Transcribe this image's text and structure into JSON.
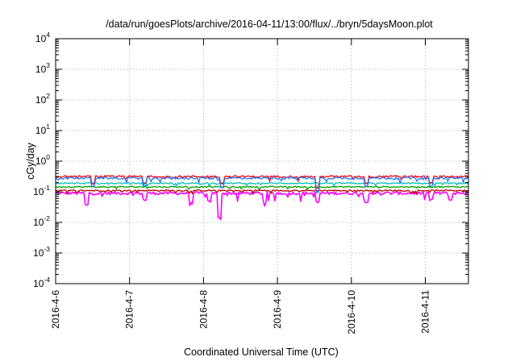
{
  "chart_data": {
    "type": "line",
    "title": "/data/run/goesPlots/archive/2016-04-11/13:00/flux/../bryn/5daysMoon.plot",
    "xlabel": "Coordinated Universal Time (UTC)",
    "ylabel": "cGy/day",
    "yscale": "log",
    "ylim": [
      0.0001,
      10000
    ],
    "y_ticks": [
      {
        "base": "10",
        "exp": "-4",
        "value": 0.0001
      },
      {
        "base": "10",
        "exp": "-3",
        "value": 0.001
      },
      {
        "base": "10",
        "exp": "-2",
        "value": 0.01
      },
      {
        "base": "10",
        "exp": "-1",
        "value": 0.1
      },
      {
        "base": "10",
        "exp": "0",
        "value": 1
      },
      {
        "base": "10",
        "exp": "1",
        "value": 10
      },
      {
        "base": "10",
        "exp": "2",
        "value": 100
      },
      {
        "base": "10",
        "exp": "3",
        "value": 1000
      },
      {
        "base": "10",
        "exp": "4",
        "value": 10000
      }
    ],
    "xlim": [
      "2016-04-06",
      "2016-04-11 14:00"
    ],
    "x_ticks": [
      "2016-4-6",
      "2016-4-7",
      "2016-4-8",
      "2016-4-9",
      "2016-4-10",
      "2016-4-11"
    ],
    "grid": true,
    "legend": "none",
    "series": [
      {
        "color": "#ff00ff",
        "base_value": 0.09,
        "noise": 0.11,
        "dip_depth": 0.45,
        "dips": [
          [
            "2016-04-06 10:00",
            0.6
          ],
          [
            "2016-04-07 05:00",
            0.4
          ],
          [
            "2016-04-07 20:00",
            0.5
          ],
          [
            "2016-04-08 02:00",
            0.45
          ],
          [
            "2016-04-08 05:00",
            0.85
          ],
          [
            "2016-04-08 20:00",
            0.45
          ],
          [
            "2016-04-09 13:00",
            0.5
          ],
          [
            "2016-04-10 05:00",
            0.45
          ],
          [
            "2016-04-11 02:00",
            0.4
          ],
          [
            "2016-04-11 08:00",
            0.4
          ]
        ]
      },
      {
        "color": "#c00000",
        "base_value": 0.11,
        "noise": 0.05,
        "dip_depth": 0.2,
        "dips": []
      },
      {
        "color": "#00a000",
        "base_value": 0.145,
        "noise": 0.05,
        "dip_depth": 0.2,
        "dips": []
      },
      {
        "color": "#00c0c0",
        "base_value": 0.19,
        "noise": 0.05,
        "dip_depth": 0.2,
        "dips": []
      },
      {
        "color": "#ff0000",
        "base_value": 0.315,
        "noise": 0.07,
        "dip_depth": 0.3,
        "dips": [
          [
            "2016-04-06 12:00",
            0.4
          ],
          [
            "2016-04-07 05:00",
            0.4
          ],
          [
            "2016-04-08 06:00",
            0.4
          ],
          [
            "2016-04-09 13:00",
            0.6
          ],
          [
            "2016-04-10 05:00",
            0.4
          ],
          [
            "2016-04-11 02:00",
            0.4
          ]
        ]
      },
      {
        "color": "#1e78ff",
        "base_value": 0.28,
        "noise": 0.08,
        "dip_depth": 0.35,
        "dips": [
          [
            "2016-04-06 12:00",
            0.45
          ],
          [
            "2016-04-07 05:00",
            0.45
          ],
          [
            "2016-04-08 06:00",
            0.5
          ],
          [
            "2016-04-09 13:00",
            0.65
          ],
          [
            "2016-04-10 05:00",
            0.45
          ],
          [
            "2016-04-11 02:00",
            0.45
          ]
        ]
      }
    ]
  }
}
